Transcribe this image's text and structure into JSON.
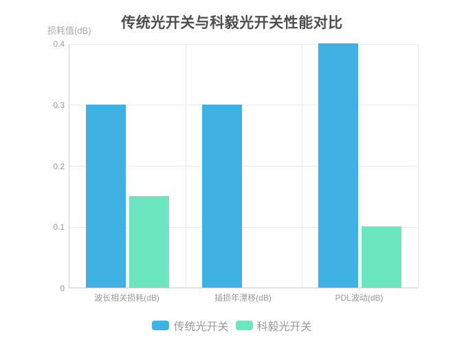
{
  "chart_data": {
    "type": "bar",
    "title": "传统光开关与科毅光开关性能对比",
    "ylabel": "损耗值(dB)",
    "xlabel": "",
    "categories": [
      "波长相关损耗(dB)",
      "插损年漂移(dB)",
      "PDL波动(dB)"
    ],
    "series": [
      {
        "name": "传统光开关",
        "color": "#3fb1e3",
        "values": [
          0.3,
          0.3,
          0.4
        ]
      },
      {
        "name": "科毅光开关",
        "color": "#6be6c1",
        "values": [
          0.15,
          0,
          0.1
        ]
      }
    ],
    "ylim": [
      0,
      0.4
    ],
    "yticks": [
      {
        "value": 0,
        "label": "0"
      },
      {
        "value": 0.1,
        "label": "0.1"
      },
      {
        "value": 0.2,
        "label": "0.2"
      },
      {
        "value": 0.3,
        "label": "0.3"
      },
      {
        "value": 0.4,
        "label": "0.4"
      }
    ],
    "grid": true,
    "legend_position": "bottom"
  },
  "colors": {
    "background": "#ffffff",
    "title_text": "#4d4d4d",
    "axis_line": "#cccccc",
    "grid_line": "#e9e9e9",
    "axis_label": "#999999",
    "legend_text": "#999999",
    "series_blue": "#3fb1e3",
    "series_green": "#6be6c1"
  }
}
